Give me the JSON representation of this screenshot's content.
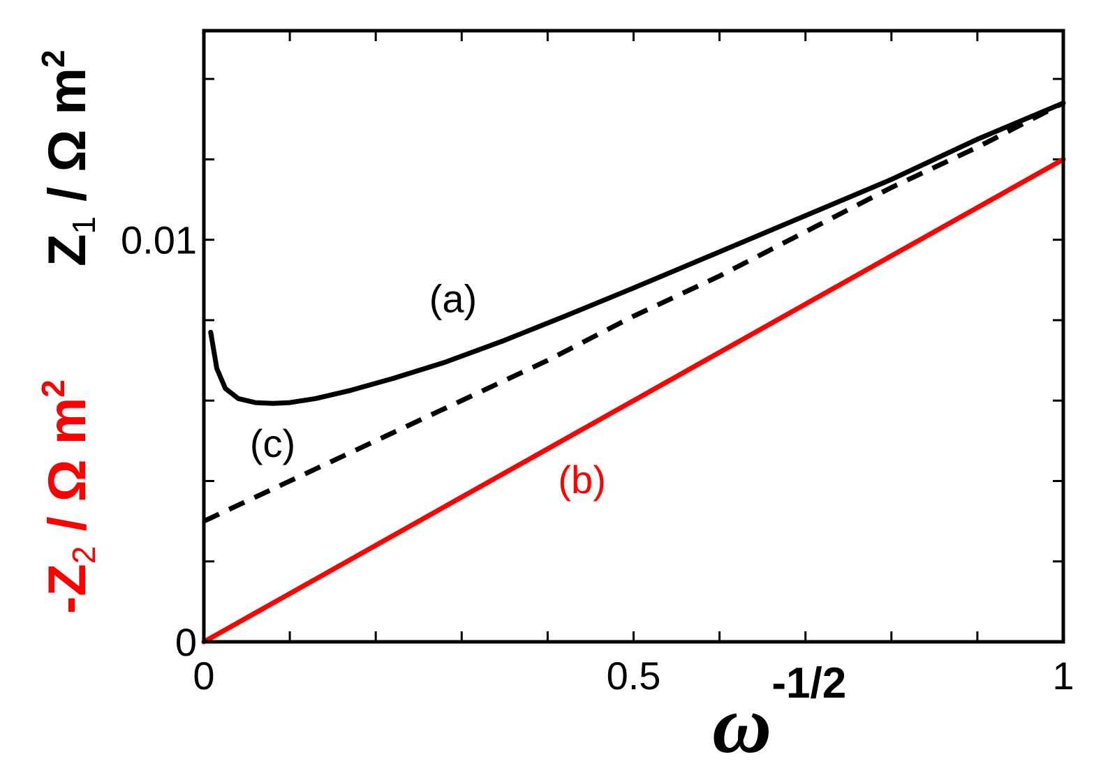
{
  "chart_data": {
    "type": "line",
    "xlabel": {
      "base": "ω",
      "sup": "-1/2"
    },
    "ylabel_left_red": {
      "prefix": "-Z",
      "sub": "2",
      "unit": " / Ω m",
      "sup": "2"
    },
    "ylabel_right_black": {
      "prefix": "Z",
      "sub": "1",
      "unit": " / Ω m",
      "sup": "2"
    },
    "xlim": [
      0,
      1
    ],
    "ylim": [
      0,
      0.0152
    ],
    "x_tick_labels": [
      {
        "value": 0,
        "label": "0"
      },
      {
        "value": 0.5,
        "label": "0.5"
      },
      {
        "value": 1,
        "label": "1"
      }
    ],
    "y_tick_labels": [
      {
        "value": 0,
        "label": "0"
      },
      {
        "value": 0.01,
        "label": "0.01"
      }
    ],
    "x_minor_ticks": [
      0.1,
      0.2,
      0.3,
      0.4,
      0.6,
      0.7,
      0.8,
      0.9
    ],
    "y_minor_ticks": [
      0.002,
      0.004,
      0.006,
      0.008,
      0.012,
      0.014
    ],
    "series": [
      {
        "name": "(a)",
        "color": "#000000",
        "style": "solid",
        "label_at": [
          0.29,
          0.0082
        ],
        "x": [
          0.008,
          0.015,
          0.025,
          0.04,
          0.06,
          0.08,
          0.1,
          0.13,
          0.17,
          0.22,
          0.28,
          0.35,
          0.42,
          0.5,
          0.6,
          0.7,
          0.8,
          0.9,
          1.0
        ],
        "y": [
          0.0077,
          0.0068,
          0.0063,
          0.00605,
          0.00595,
          0.00593,
          0.00595,
          0.00605,
          0.00625,
          0.00655,
          0.00695,
          0.0075,
          0.0081,
          0.0088,
          0.0097,
          0.0106,
          0.0115,
          0.0125,
          0.0134
        ]
      },
      {
        "name": "(b)",
        "color": "#ff0000",
        "style": "solid",
        "label_at": [
          0.44,
          0.0037
        ],
        "x": [
          0,
          1
        ],
        "y": [
          0,
          0.012
        ]
      },
      {
        "name": "(c)",
        "color": "#000000",
        "style": "dashed",
        "label_at": [
          0.08,
          0.0046
        ],
        "x": [
          0,
          0.1,
          0.2,
          0.3,
          0.4,
          0.5,
          0.6,
          0.7,
          0.8,
          0.9,
          1.0
        ],
        "y": [
          0.003,
          0.004,
          0.005,
          0.006,
          0.007,
          0.0081,
          0.0091,
          0.0102,
          0.0113,
          0.0123,
          0.0134
        ]
      }
    ]
  }
}
